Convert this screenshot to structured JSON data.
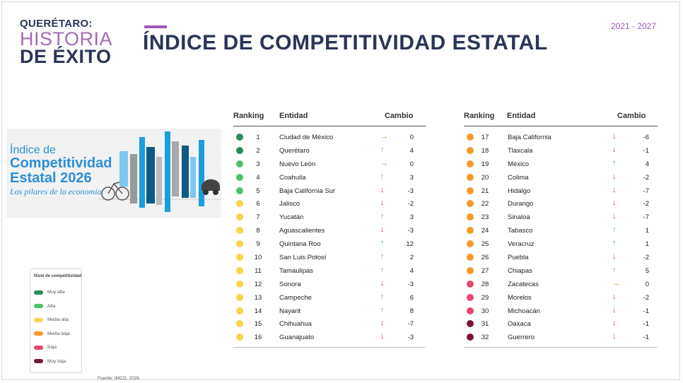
{
  "logo": {
    "line1": "QUERÉTARO:",
    "line2": "HISTORIA",
    "line3": "DE ÉXITO"
  },
  "title": "ÍNDICE DE COMPETITIVIDAD ESTATAL",
  "years": "2021 - 2027",
  "banner": {
    "line1": "Índice de",
    "line2": "Competitividad",
    "line3": "Estatal 2026",
    "line4": "Los pilares de la economía"
  },
  "headers": {
    "ranking": "Ranking",
    "entidad": "Entidad",
    "cambio": "Cambio"
  },
  "legend": {
    "title": "Nivel de competitividad",
    "items": [
      {
        "label": "Muy alta",
        "color": "#2e8b57"
      },
      {
        "label": "Alta",
        "color": "#4cc26a"
      },
      {
        "label": "Media alta",
        "color": "#f6d54a"
      },
      {
        "label": "Media baja",
        "color": "#f49a2b"
      },
      {
        "label": "Baja",
        "color": "#e2476e"
      },
      {
        "label": "Muy baja",
        "color": "#7a1533"
      }
    ]
  },
  "level_colors": {
    "muy_alta": "#2e8b57",
    "alta": "#4cc26a",
    "media_alta": "#f6d54a",
    "media_baja": "#f49a2b",
    "baja": "#e2476e",
    "muy_baja": "#7a1533"
  },
  "arrow_colors": {
    "up": "#4cc26a",
    "down": "#d9363e",
    "same": "#e67e22"
  },
  "rows": [
    {
      "rank": "1",
      "entidad": "Ciudad de México",
      "arrow": "→",
      "dir": "same",
      "cambio": "0",
      "level": "muy_alta"
    },
    {
      "rank": "2",
      "entidad": "Querétaro",
      "arrow": "↑",
      "dir": "up",
      "cambio": "4",
      "level": "muy_alta"
    },
    {
      "rank": "3",
      "entidad": "Nuevo León",
      "arrow": "→",
      "dir": "same",
      "cambio": "0",
      "level": "alta"
    },
    {
      "rank": "4",
      "entidad": "Coahuila",
      "arrow": "↑",
      "dir": "up",
      "cambio": "3",
      "level": "alta"
    },
    {
      "rank": "5",
      "entidad": "Baja California Sur",
      "arrow": "↓",
      "dir": "down",
      "cambio": "-3",
      "level": "alta"
    },
    {
      "rank": "6",
      "entidad": "Jalisco",
      "arrow": "↓",
      "dir": "down",
      "cambio": "-2",
      "level": "media_alta"
    },
    {
      "rank": "7",
      "entidad": "Yucatán",
      "arrow": "↑",
      "dir": "up",
      "cambio": "3",
      "level": "media_alta"
    },
    {
      "rank": "8",
      "entidad": "Aguascalientes",
      "arrow": "↓",
      "dir": "down",
      "cambio": "-3",
      "level": "media_alta"
    },
    {
      "rank": "9",
      "entidad": "Quintana Roo",
      "arrow": "↑",
      "dir": "up",
      "cambio": "12",
      "level": "media_alta"
    },
    {
      "rank": "10",
      "entidad": "San Luis Potosí",
      "arrow": "↑",
      "dir": "up",
      "cambio": "2",
      "level": "media_alta"
    },
    {
      "rank": "11",
      "entidad": "Tamaulipas",
      "arrow": "↑",
      "dir": "up",
      "cambio": "4",
      "level": "media_alta"
    },
    {
      "rank": "12",
      "entidad": "Sonora",
      "arrow": "↓",
      "dir": "down",
      "cambio": "-3",
      "level": "media_alta"
    },
    {
      "rank": "13",
      "entidad": "Campeche",
      "arrow": "↑",
      "dir": "up",
      "cambio": "6",
      "level": "media_alta"
    },
    {
      "rank": "14",
      "entidad": "Nayarit",
      "arrow": "↑",
      "dir": "up",
      "cambio": "8",
      "level": "media_alta"
    },
    {
      "rank": "15",
      "entidad": "Chihuahua",
      "arrow": "↓",
      "dir": "down",
      "cambio": "-7",
      "level": "media_alta"
    },
    {
      "rank": "16",
      "entidad": "Guanajuato",
      "arrow": "↓",
      "dir": "down",
      "cambio": "-3",
      "level": "media_alta"
    },
    {
      "rank": "17",
      "entidad": "Baja California",
      "arrow": "↓",
      "dir": "down",
      "cambio": "-6",
      "level": "media_baja"
    },
    {
      "rank": "18",
      "entidad": "Tlaxcala",
      "arrow": "↓",
      "dir": "down",
      "cambio": "-1",
      "level": "media_baja"
    },
    {
      "rank": "19",
      "entidad": "México",
      "arrow": "↑",
      "dir": "up",
      "cambio": "4",
      "level": "media_baja"
    },
    {
      "rank": "20",
      "entidad": "Colima",
      "arrow": "↓",
      "dir": "down",
      "cambio": "-2",
      "level": "media_baja"
    },
    {
      "rank": "21",
      "entidad": "Hidalgo",
      "arrow": "↓",
      "dir": "down",
      "cambio": "-7",
      "level": "media_baja"
    },
    {
      "rank": "22",
      "entidad": "Durango",
      "arrow": "↓",
      "dir": "down",
      "cambio": "-2",
      "level": "media_baja"
    },
    {
      "rank": "23",
      "entidad": "Sinaloa",
      "arrow": "↓",
      "dir": "down",
      "cambio": "-7",
      "level": "media_baja"
    },
    {
      "rank": "24",
      "entidad": "Tabasco",
      "arrow": "↑",
      "dir": "up",
      "cambio": "1",
      "level": "media_baja"
    },
    {
      "rank": "25",
      "entidad": "Veracruz",
      "arrow": "↑",
      "dir": "up",
      "cambio": "1",
      "level": "media_baja"
    },
    {
      "rank": "26",
      "entidad": "Puebla",
      "arrow": "↓",
      "dir": "down",
      "cambio": "-2",
      "level": "media_baja"
    },
    {
      "rank": "27",
      "entidad": "Chiapas",
      "arrow": "↑",
      "dir": "up",
      "cambio": "5",
      "level": "media_baja"
    },
    {
      "rank": "28",
      "entidad": "Zacatecas",
      "arrow": "→",
      "dir": "same",
      "cambio": "0",
      "level": "baja"
    },
    {
      "rank": "29",
      "entidad": "Morelos",
      "arrow": "↓",
      "dir": "down",
      "cambio": "-2",
      "level": "baja"
    },
    {
      "rank": "30",
      "entidad": "Michoacán",
      "arrow": "↓",
      "dir": "down",
      "cambio": "-1",
      "level": "baja"
    },
    {
      "rank": "31",
      "entidad": "Oaxaca",
      "arrow": "↓",
      "dir": "down",
      "cambio": "-1",
      "level": "muy_baja"
    },
    {
      "rank": "32",
      "entidad": "Guerrero",
      "arrow": "↓",
      "dir": "down",
      "cambio": "-1",
      "level": "muy_baja"
    }
  ],
  "source": "Fuente: IMCO, 2026."
}
